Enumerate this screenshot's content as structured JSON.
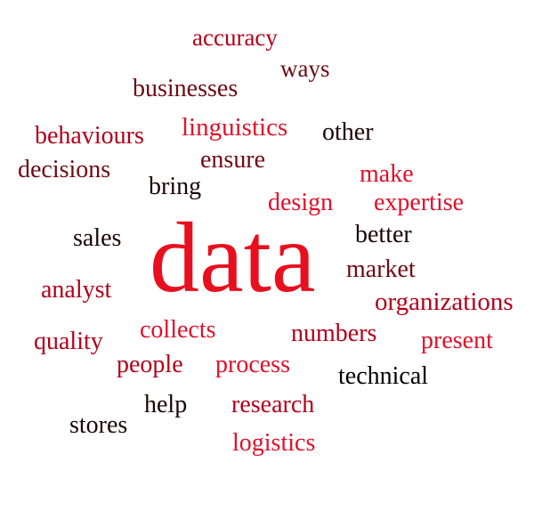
{
  "words": [
    {
      "text": "accuracy",
      "color": "#b3001b"
    },
    {
      "text": "ways",
      "color": "#6e0a12"
    },
    {
      "text": "businesses",
      "color": "#6e0a12"
    },
    {
      "text": "behaviours",
      "color": "#b3001b"
    },
    {
      "text": "linguistics",
      "color": "#e0102a"
    },
    {
      "text": "other",
      "color": "#1a0505"
    },
    {
      "text": "decisions",
      "color": "#6e0a12"
    },
    {
      "text": "ensure",
      "color": "#6e0a12"
    },
    {
      "text": "bring",
      "color": "#1a0505"
    },
    {
      "text": "make",
      "color": "#e0102a"
    },
    {
      "text": "design",
      "color": "#e0102a"
    },
    {
      "text": "expertise",
      "color": "#e0102a"
    },
    {
      "text": "sales",
      "color": "#1a0505"
    },
    {
      "text": "data",
      "color": "#e8101e"
    },
    {
      "text": "better",
      "color": "#1a0505"
    },
    {
      "text": "market",
      "color": "#6e0a12"
    },
    {
      "text": "analyst",
      "color": "#b3001b"
    },
    {
      "text": "organizations",
      "color": "#b3001b"
    },
    {
      "text": "collects",
      "color": "#e0102a"
    },
    {
      "text": "numbers",
      "color": "#b3001b"
    },
    {
      "text": "quality",
      "color": "#b3001b"
    },
    {
      "text": "present",
      "color": "#e0102a"
    },
    {
      "text": "people",
      "color": "#b3001b"
    },
    {
      "text": "process",
      "color": "#e0102a"
    },
    {
      "text": "technical",
      "color": "#000000"
    },
    {
      "text": "help",
      "color": "#1a0505"
    },
    {
      "text": "research",
      "color": "#b3001b"
    },
    {
      "text": "stores",
      "color": "#1a0505"
    },
    {
      "text": "logistics",
      "color": "#e0102a"
    }
  ]
}
